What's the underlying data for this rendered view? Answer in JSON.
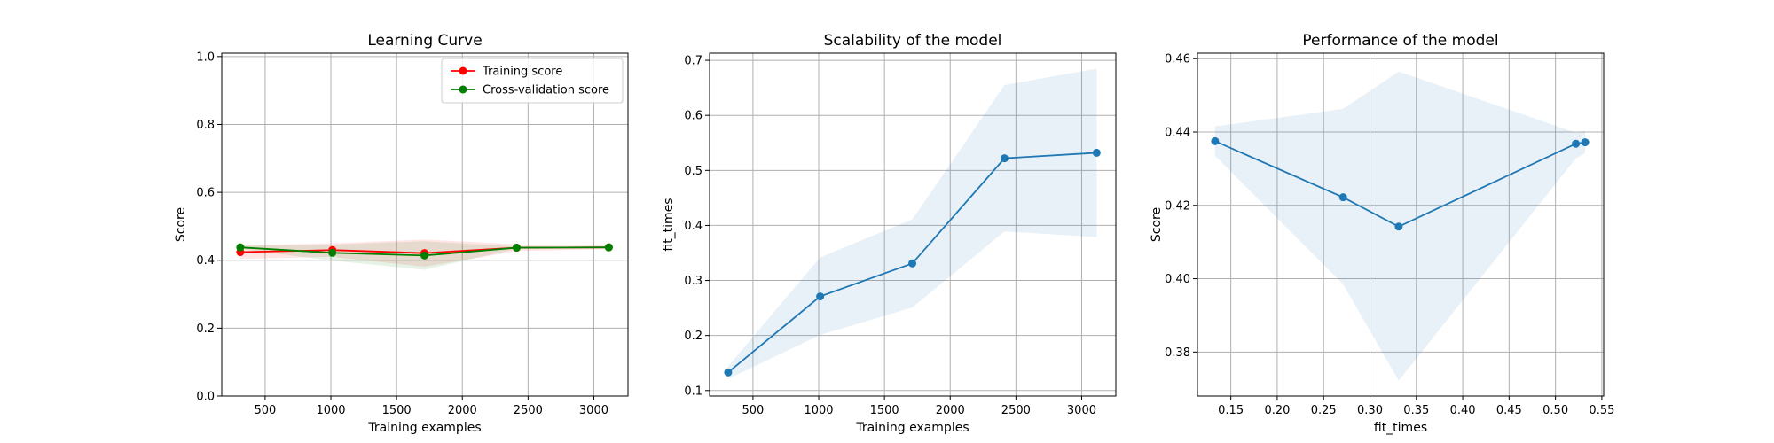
{
  "chart_data": [
    {
      "type": "line",
      "title": "Learning Curve",
      "xlabel": "Training examples",
      "ylabel": "Score",
      "xlim": [
        170,
        3260
      ],
      "ylim": [
        0.0,
        1.01
      ],
      "xticks": [
        500,
        1000,
        1500,
        2000,
        2500,
        3000
      ],
      "xtick_labels": [
        "500",
        "1000",
        "1500",
        "2000",
        "2500",
        "3000"
      ],
      "yticks": [
        0.0,
        0.2,
        0.4,
        0.6,
        0.8,
        1.0
      ],
      "ytick_labels": [
        "0.0",
        "0.2",
        "0.4",
        "0.6",
        "0.8",
        "1.0"
      ],
      "grid": true,
      "legend": "top-right",
      "series": [
        {
          "name": "Training score",
          "color": "#ff0000",
          "x": [
            311,
            1011,
            1712,
            2413,
            3114
          ],
          "y": [
            0.424,
            0.43,
            0.421,
            0.437,
            0.438
          ],
          "band_low": [
            0.404,
            0.41,
            0.381,
            0.427,
            0.433
          ],
          "band_high": [
            0.444,
            0.45,
            0.461,
            0.447,
            0.443
          ]
        },
        {
          "name": "Cross-validation score",
          "color": "#008000",
          "x": [
            311,
            1011,
            1712,
            2413,
            3114
          ],
          "y": [
            0.438,
            0.422,
            0.414,
            0.437,
            0.438
          ],
          "band_low": [
            0.433,
            0.399,
            0.372,
            0.434,
            0.435
          ],
          "band_high": [
            0.443,
            0.446,
            0.456,
            0.44,
            0.441
          ]
        }
      ]
    },
    {
      "type": "line",
      "title": "Scalability of the model",
      "xlabel": "Training examples",
      "ylabel": "fit_times",
      "xlim": [
        170,
        3260
      ],
      "ylim": [
        0.09,
        0.713
      ],
      "xticks": [
        500,
        1000,
        1500,
        2000,
        2500,
        3000
      ],
      "xtick_labels": [
        "500",
        "1000",
        "1500",
        "2000",
        "2500",
        "3000"
      ],
      "yticks": [
        0.1,
        0.2,
        0.3,
        0.4,
        0.5,
        0.6,
        0.7
      ],
      "ytick_labels": [
        "0.1",
        "0.2",
        "0.3",
        "0.4",
        "0.5",
        "0.6",
        "0.7"
      ],
      "grid": true,
      "series": [
        {
          "color": "#1f77b4",
          "x": [
            311,
            1011,
            1712,
            2413,
            3114
          ],
          "y": [
            0.133,
            0.271,
            0.331,
            0.522,
            0.532
          ],
          "band_low": [
            0.121,
            0.201,
            0.251,
            0.389,
            0.379
          ],
          "band_high": [
            0.144,
            0.342,
            0.411,
            0.655,
            0.685
          ]
        }
      ]
    },
    {
      "type": "line",
      "title": "Performance of the model",
      "xlabel": "fit_times",
      "ylabel": "Score",
      "xlim": [
        0.114,
        0.552
      ],
      "ylim": [
        0.368,
        0.4615
      ],
      "xticks": [
        0.15,
        0.2,
        0.25,
        0.3,
        0.35,
        0.4,
        0.45,
        0.5,
        0.55
      ],
      "xtick_labels": [
        "0.15",
        "0.20",
        "0.25",
        "0.30",
        "0.35",
        "0.40",
        "0.45",
        "0.50",
        "0.55"
      ],
      "yticks": [
        0.38,
        0.4,
        0.42,
        0.44,
        0.46
      ],
      "ytick_labels": [
        "0.38",
        "0.40",
        "0.42",
        "0.44",
        "0.46"
      ],
      "grid": true,
      "series": [
        {
          "color": "#1f77b4",
          "x": [
            0.133,
            0.271,
            0.331,
            0.522,
            0.532
          ],
          "y": [
            0.4375,
            0.4222,
            0.4142,
            0.4368,
            0.4372
          ],
          "band_low": [
            0.4335,
            0.3985,
            0.3722,
            0.4328,
            0.4342
          ],
          "band_high": [
            0.4415,
            0.4463,
            0.4565,
            0.4398,
            0.4403
          ]
        }
      ]
    }
  ]
}
